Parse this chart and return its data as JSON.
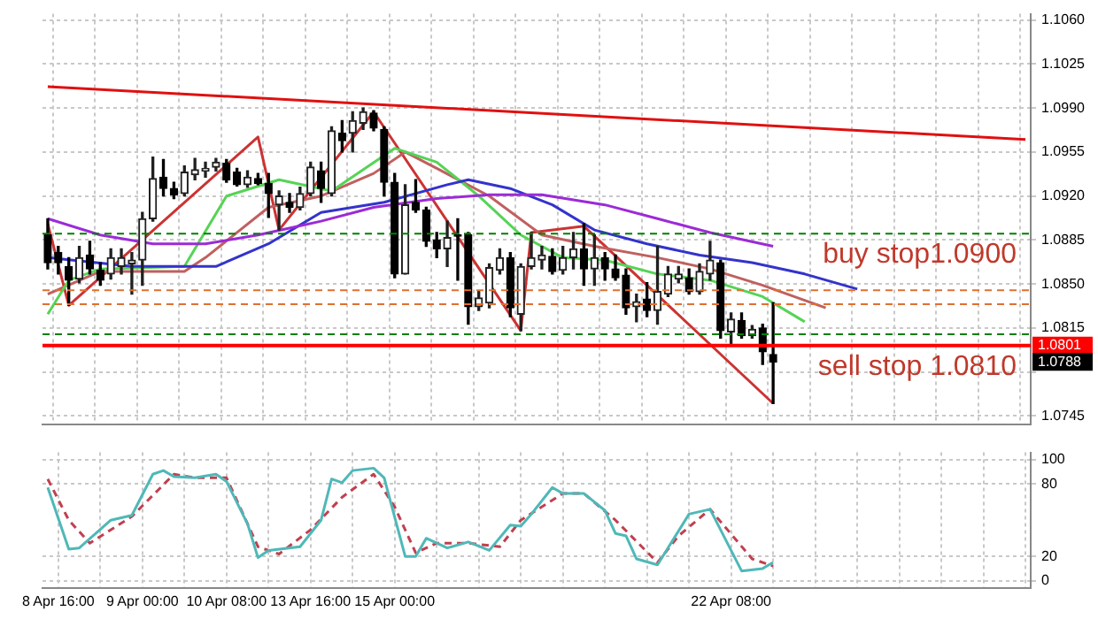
{
  "chart_data": [
    {
      "type": "candlestick",
      "tick_labels": "y",
      "grid": true,
      "categories": [
        null,
        null,
        null,
        null,
        null,
        null,
        null,
        null,
        null,
        null,
        null,
        null,
        null,
        null,
        null,
        null,
        null,
        null,
        null,
        null,
        null,
        null,
        null,
        null,
        null,
        null,
        null,
        null,
        null,
        null,
        null,
        null,
        null,
        null,
        null,
        null,
        null,
        null,
        null,
        null,
        null,
        null,
        null,
        null,
        null,
        null,
        null,
        null,
        null,
        null,
        null,
        null,
        null,
        null,
        null,
        null,
        null,
        null,
        null,
        null,
        null,
        null,
        null,
        null,
        null,
        null,
        null,
        null,
        null,
        null,
        null,
        null,
        null,
        null,
        null,
        null,
        null,
        null,
        null,
        null,
        null,
        null,
        null,
        null,
        null,
        null,
        null,
        null,
        null,
        null,
        null,
        null,
        null,
        null
      ],
      "ohlc": [
        [
          1.0889,
          1.0902,
          1.0862,
          1.0867
        ],
        [
          1.0875,
          1.088,
          1.0858,
          1.0867
        ],
        [
          1.0864,
          1.0871,
          1.0833,
          1.0853
        ],
        [
          1.0854,
          1.088,
          1.0851,
          1.0871
        ],
        [
          1.0873,
          1.0884,
          1.0858,
          1.0862
        ],
        [
          1.0861,
          1.0867,
          1.0849,
          1.0853
        ],
        [
          1.0858,
          1.0878,
          1.0854,
          1.0871
        ],
        [
          1.0864,
          1.0878,
          1.0858,
          1.0871
        ],
        [
          1.0866,
          1.0875,
          1.0842,
          1.0869
        ],
        [
          1.0869,
          1.0907,
          1.0849,
          1.0902
        ],
        [
          1.0902,
          1.0951,
          1.09,
          1.0934
        ],
        [
          1.0935,
          1.0949,
          1.092,
          1.0926
        ],
        [
          1.0926,
          1.0931,
          1.0918,
          1.0921
        ],
        [
          1.0922,
          1.0944,
          1.092,
          1.0939
        ],
        [
          1.0937,
          1.095,
          1.0933,
          1.0941
        ],
        [
          1.094,
          1.0947,
          1.0935,
          1.0942
        ],
        [
          1.0943,
          1.095,
          1.094,
          1.0947
        ],
        [
          1.0946,
          1.0949,
          1.0931,
          1.0933
        ],
        [
          1.0939,
          1.0942,
          1.0928,
          1.0929
        ],
        [
          1.0929,
          1.094,
          1.0927,
          1.0935
        ],
        [
          1.0934,
          1.0938,
          1.0929,
          1.093
        ],
        [
          1.093,
          1.0938,
          1.0903,
          1.0922
        ],
        [
          1.0913,
          1.0924,
          1.0893,
          1.092
        ],
        [
          1.0915,
          1.0922,
          1.0907,
          1.0911
        ],
        [
          1.0911,
          1.0927,
          1.0909,
          1.0922
        ],
        [
          1.0922,
          1.0947,
          1.092,
          1.0943
        ],
        [
          1.094,
          1.0947,
          1.0915,
          1.0926
        ],
        [
          1.0922,
          1.0975,
          1.092,
          1.0972
        ],
        [
          1.097,
          1.098,
          1.0955,
          1.0964
        ],
        [
          1.097,
          1.0987,
          1.0955,
          1.098
        ],
        [
          1.0978,
          1.099,
          1.0973,
          1.0987
        ],
        [
          1.0986,
          1.0988,
          1.0972,
          1.0974
        ],
        [
          1.0973,
          1.0975,
          1.092,
          1.0931
        ],
        [
          1.0931,
          1.0938,
          1.0855,
          1.0858
        ],
        [
          1.0858,
          1.0929,
          1.0858,
          1.0913
        ],
        [
          1.0915,
          1.0933,
          1.0907,
          1.0909
        ],
        [
          1.0909,
          1.0911,
          1.088,
          1.0884
        ],
        [
          1.0885,
          1.0891,
          1.0871,
          1.0878
        ],
        [
          1.0878,
          1.09,
          1.0864,
          1.0887
        ],
        [
          1.0889,
          1.0902,
          1.0853,
          1.0888
        ],
        [
          1.0889,
          1.0891,
          1.0818,
          1.0832
        ],
        [
          1.0832,
          1.0844,
          1.0829,
          1.0839
        ],
        [
          1.0835,
          1.0866,
          1.0831,
          1.0863
        ],
        [
          1.0861,
          1.0878,
          1.0858,
          1.0871
        ],
        [
          1.0871,
          1.0875,
          1.0824,
          1.0831
        ],
        [
          1.0826,
          1.0866,
          1.0813,
          1.0864
        ],
        [
          1.0864,
          1.0891,
          1.0862,
          1.0871
        ],
        [
          1.0869,
          1.088,
          1.0862,
          1.0873
        ],
        [
          1.0872,
          1.0878,
          1.0858,
          1.086
        ],
        [
          1.0861,
          1.088,
          1.0858,
          1.0871
        ],
        [
          1.0871,
          1.0891,
          1.0862,
          1.0878
        ],
        [
          1.0878,
          1.0898,
          1.0849,
          1.0862
        ],
        [
          1.0862,
          1.0889,
          1.0849,
          1.0871
        ],
        [
          1.0871,
          1.0875,
          1.0853,
          1.0862
        ],
        [
          1.0862,
          1.0873,
          1.0853,
          1.0855
        ],
        [
          1.0857,
          1.0862,
          1.0826,
          1.0831
        ],
        [
          1.0832,
          1.0842,
          1.082,
          1.0836
        ],
        [
          1.0838,
          1.0851,
          1.0824,
          1.0829
        ],
        [
          1.0829,
          1.088,
          1.0818,
          1.0844
        ],
        [
          1.0842,
          1.0864,
          1.084,
          1.0858
        ],
        [
          1.0854,
          1.0864,
          1.0851,
          1.0858
        ],
        [
          1.0855,
          1.0862,
          1.0842,
          1.0844
        ],
        [
          1.0844,
          1.0866,
          1.0842,
          1.086
        ],
        [
          1.0858,
          1.0884,
          1.0853,
          1.0869
        ],
        [
          1.0867,
          1.0869,
          1.0807,
          1.0813
        ],
        [
          1.0812,
          1.0827,
          1.0802,
          1.0822
        ],
        [
          1.0821,
          1.0827,
          1.0807,
          1.0809
        ],
        [
          1.0809,
          1.0817,
          1.0807,
          1.0814
        ],
        [
          1.0815,
          1.0818,
          1.0786,
          1.0796
        ],
        [
          1.0794,
          1.0835,
          1.0755,
          1.0788
        ],
        null,
        null,
        null,
        null,
        null,
        null,
        null,
        null,
        null,
        null,
        null,
        null,
        null,
        null,
        null,
        null,
        null,
        null,
        null,
        null,
        null,
        null,
        null,
        null
      ],
      "value_labels": [
        null,
        null,
        null,
        null,
        null,
        null,
        null,
        null,
        null,
        null,
        null,
        null,
        null,
        null,
        null,
        null,
        null,
        null,
        null,
        null,
        null,
        null,
        null,
        null,
        null,
        null,
        null,
        null,
        null,
        null,
        null,
        null,
        null,
        null,
        null,
        null,
        null,
        null,
        null,
        null,
        null,
        null,
        null,
        null,
        null,
        null,
        null,
        null,
        null,
        null,
        null,
        null,
        null,
        null,
        null,
        null,
        null,
        null,
        null,
        null,
        null,
        null,
        null,
        null,
        null,
        null,
        null,
        null,
        null,
        "1.0788",
        null,
        null,
        null,
        null,
        null,
        null,
        null,
        null,
        null,
        null,
        null,
        null,
        null,
        null,
        null,
        null,
        null,
        null,
        null,
        null,
        null,
        null,
        null,
        null
      ],
      "series": [
        {
          "type": "line",
          "color": "#e01010",
          "values": [
            1.1007,
            null,
            null,
            null,
            null,
            null,
            null,
            null,
            null,
            null,
            null,
            null,
            null,
            null,
            null,
            null,
            null,
            null,
            null,
            null,
            null,
            null,
            null,
            null,
            null,
            null,
            null,
            null,
            null,
            null,
            null,
            null,
            null,
            null,
            null,
            null,
            null,
            null,
            null,
            null,
            null,
            null,
            null,
            null,
            null,
            null,
            null,
            null,
            null,
            null,
            null,
            null,
            null,
            null,
            null,
            null,
            null,
            null,
            null,
            null,
            null,
            null,
            null,
            null,
            null,
            null,
            null,
            null,
            null,
            null,
            null,
            null,
            null,
            null,
            null,
            null,
            null,
            null,
            null,
            null,
            null,
            null,
            null,
            null,
            null,
            null,
            null,
            null,
            null,
            null,
            null,
            null,
            null,
            1.0965
          ]
        },
        {
          "type": "line",
          "color": "#9b2bd6",
          "values": [
            1.0902,
            null,
            null,
            null,
            null,
            1.0889,
            null,
            null,
            null,
            null,
            1.0882,
            null,
            null,
            null,
            null,
            1.0882,
            null,
            null,
            null,
            null,
            1.0889,
            null,
            null,
            null,
            null,
            null,
            1.09,
            null,
            null,
            null,
            null,
            1.0911,
            null,
            null,
            null,
            null,
            null,
            1.0918,
            null,
            null,
            null,
            null,
            1.0921,
            null,
            null,
            null,
            null,
            1.0921,
            null,
            null,
            null,
            null,
            null,
            1.0913,
            null,
            null,
            null,
            null,
            1.0902,
            null,
            null,
            null,
            null,
            1.0891,
            null,
            null,
            null,
            null,
            null,
            1.088,
            null,
            null,
            null,
            null,
            null,
            null,
            null,
            null,
            null,
            null,
            null,
            null,
            null,
            null,
            null,
            null,
            null,
            null,
            null,
            null,
            null,
            null,
            null,
            null
          ]
        },
        {
          "type": "line",
          "color": "#3333cc",
          "values": [
            1.0871,
            null,
            null,
            null,
            null,
            null,
            null,
            null,
            1.0864,
            null,
            null,
            null,
            null,
            null,
            null,
            null,
            1.0864,
            null,
            null,
            null,
            null,
            1.0882,
            null,
            null,
            null,
            null,
            1.0907,
            null,
            null,
            null,
            null,
            null,
            1.0915,
            null,
            null,
            null,
            null,
            null,
            1.0929,
            null,
            1.0933,
            null,
            null,
            null,
            1.0926,
            null,
            null,
            null,
            1.0913,
            null,
            null,
            null,
            1.0893,
            null,
            null,
            null,
            null,
            1.0882,
            null,
            null,
            null,
            null,
            1.0873,
            null,
            null,
            null,
            null,
            1.0867,
            null,
            null,
            null,
            null,
            1.0858,
            null,
            null,
            null,
            null,
            1.0846,
            null,
            null,
            null,
            null,
            null,
            null,
            null,
            null,
            null,
            null,
            null,
            null,
            null,
            null,
            null,
            null
          ]
        },
        {
          "type": "line",
          "color": "#55d455",
          "values": [
            1.0826,
            null,
            1.0853,
            null,
            null,
            1.0862,
            null,
            null,
            null,
            null,
            null,
            null,
            null,
            1.0864,
            null,
            null,
            null,
            1.092,
            null,
            null,
            null,
            null,
            1.0933,
            null,
            null,
            null,
            null,
            1.0924,
            null,
            null,
            null,
            null,
            null,
            1.0958,
            null,
            null,
            null,
            1.0947,
            null,
            null,
            null,
            1.092,
            null,
            null,
            null,
            1.0889,
            null,
            null,
            null,
            1.0871,
            null,
            null,
            null,
            1.0869,
            null,
            null,
            null,
            null,
            1.0858,
            null,
            null,
            null,
            null,
            1.0853,
            null,
            null,
            null,
            null,
            1.084,
            null,
            null,
            null,
            1.082,
            null,
            null,
            null,
            null,
            null,
            null,
            null,
            null,
            null,
            null,
            null,
            null,
            null,
            null,
            null,
            null,
            null,
            null,
            null,
            null,
            null
          ]
        },
        {
          "type": "line",
          "color": "#c06060",
          "values": [
            1.0842,
            null,
            null,
            null,
            null,
            1.086,
            null,
            null,
            null,
            null,
            null,
            null,
            null,
            1.086,
            null,
            1.0871,
            null,
            null,
            null,
            null,
            null,
            1.0911,
            null,
            null,
            null,
            null,
            1.092,
            null,
            null,
            null,
            null,
            1.0938,
            null,
            null,
            1.0955,
            null,
            null,
            1.0942,
            null,
            null,
            null,
            null,
            1.092,
            null,
            null,
            null,
            null,
            1.0889,
            null,
            null,
            null,
            null,
            1.088,
            null,
            null,
            null,
            null,
            null,
            1.0871,
            null,
            null,
            null,
            null,
            1.0862,
            null,
            null,
            null,
            null,
            1.0849,
            null,
            null,
            null,
            null,
            null,
            1.0831,
            null,
            null,
            null,
            null,
            null,
            null,
            null,
            null,
            null,
            null,
            null,
            null,
            null,
            null,
            null,
            null,
            null,
            null,
            null
          ]
        },
        {
          "type": "line",
          "color": "#cc3333",
          "values": [
            1.0898,
            null,
            1.0833,
            null,
            null,
            null,
            null,
            null,
            null,
            null,
            null,
            null,
            null,
            null,
            null,
            null,
            null,
            null,
            null,
            null,
            1.0967,
            null,
            1.0893,
            null,
            null,
            null,
            null,
            null,
            null,
            null,
            null,
            1.0987,
            null,
            null,
            null,
            null,
            null,
            null,
            null,
            null,
            null,
            null,
            null,
            null,
            null,
            1.0813,
            1.0891,
            null,
            null,
            null,
            null,
            1.0896,
            null,
            null,
            null,
            null,
            null,
            null,
            null,
            null,
            null,
            null,
            null,
            null,
            null,
            null,
            null,
            null,
            null,
            1.0755,
            null,
            null,
            null,
            null,
            null,
            null,
            null,
            null,
            null,
            null,
            null,
            null,
            null,
            null,
            null,
            null,
            null,
            null,
            null,
            null,
            null,
            null,
            null,
            null
          ]
        }
      ],
      "ylim": [
        1.0738,
        1.1065
      ],
      "yticks": [
        1.0745,
        {
          "value": 1.078,
          "label": null
        },
        1.0815,
        {
          "value": 1.085,
          "label": "1.0850"
        },
        1.0885,
        {
          "value": 1.092,
          "label": "1.0920"
        },
        1.0955,
        {
          "value": 1.099,
          "label": "1.0990"
        },
        1.1025,
        {
          "value": 1.106,
          "label": "1.1060"
        }
      ],
      "ref_lines": [
        {
          "axis": "y",
          "value": 1.089,
          "color": "#008000",
          "line_style": "dashed"
        },
        {
          "axis": "y",
          "value": 1.0845,
          "color": "#e07030",
          "line_style": "dashed"
        },
        {
          "axis": "y",
          "value": 1.0834,
          "color": "#e07030",
          "line_style": "dashed"
        },
        {
          "axis": "y",
          "value": 1.081,
          "color": "#008000",
          "line_style": "dashed"
        },
        {
          "axis": "y",
          "value": 1.0801,
          "color": "#ff0000",
          "line_style": "solid",
          "label": "1.0801"
        }
      ],
      "annotations": [
        {
          "text": "buy stop1.0900",
          "y": 1.089
        },
        {
          "text": "sell stop 1.0810",
          "y": 1.0801
        }
      ]
    },
    {
      "type": "line",
      "grid": true,
      "categories": [
        null,
        "8 Apr 16:00",
        null,
        null,
        null,
        null,
        null,
        null,
        null,
        "9 Apr 00:00",
        null,
        null,
        null,
        null,
        null,
        null,
        null,
        "10 Apr 08:00",
        null,
        null,
        null,
        null,
        null,
        null,
        null,
        "13 Apr 16:00",
        null,
        null,
        null,
        null,
        null,
        null,
        null,
        "15 Apr 00:00",
        null,
        null,
        null,
        null,
        null,
        null,
        null,
        null,
        null,
        null,
        null,
        null,
        null,
        null,
        null,
        null,
        null,
        null,
        null,
        null,
        null,
        null,
        null,
        null,
        null,
        null,
        null,
        null,
        null,
        null,
        null,
        "22 Apr 08:00",
        null,
        null,
        null,
        null,
        null,
        null,
        null,
        null,
        null,
        null,
        null,
        null,
        null,
        null,
        null,
        null,
        null,
        null,
        null,
        null,
        null,
        null,
        null,
        null,
        null,
        null,
        null,
        null
      ],
      "series": [
        {
          "color": "#4fb8b8",
          "line_style": "solid",
          "values": [
            77,
            null,
            26,
            27,
            null,
            null,
            50,
            null,
            54,
            null,
            88,
            91,
            86,
            null,
            85,
            null,
            88,
            82,
            null,
            47,
            19,
            25,
            null,
            null,
            28,
            null,
            50,
            84,
            81,
            91,
            null,
            93,
            85,
            null,
            20,
            20,
            35,
            null,
            27,
            null,
            32,
            null,
            25,
            null,
            46,
            45,
            55,
            null,
            77,
            72,
            null,
            72,
            null,
            58,
            39,
            37,
            18,
            null,
            13,
            null,
            null,
            55,
            null,
            59,
            null,
            null,
            8,
            null,
            10,
            15,
            null,
            null,
            null,
            null,
            null,
            null,
            null,
            null,
            null,
            null,
            null,
            null,
            null,
            null,
            null,
            null,
            null,
            null,
            null,
            null,
            null,
            null,
            null,
            null
          ]
        },
        {
          "color": "#c04050",
          "line_style": "dashed",
          "values": [
            84,
            null,
            50,
            null,
            31,
            null,
            null,
            null,
            53,
            null,
            null,
            null,
            88,
            null,
            85,
            null,
            null,
            85,
            null,
            null,
            28,
            null,
            22,
            null,
            null,
            42,
            null,
            null,
            69,
            null,
            null,
            88,
            null,
            61,
            null,
            23,
            null,
            31,
            null,
            null,
            31,
            null,
            null,
            28,
            null,
            50,
            null,
            null,
            null,
            72,
            null,
            72,
            null,
            null,
            50,
            null,
            null,
            null,
            15,
            null,
            37,
            null,
            null,
            59,
            null,
            null,
            null,
            18,
            null,
            12,
            null,
            null,
            null,
            null,
            null,
            null,
            null,
            null,
            null,
            null,
            null,
            null,
            null,
            null,
            null,
            null,
            null,
            null,
            null,
            null,
            null,
            null,
            null,
            null
          ]
        }
      ],
      "ylim": [
        -6,
        106
      ],
      "yticks": [
        0,
        20,
        80,
        100
      ]
    }
  ]
}
